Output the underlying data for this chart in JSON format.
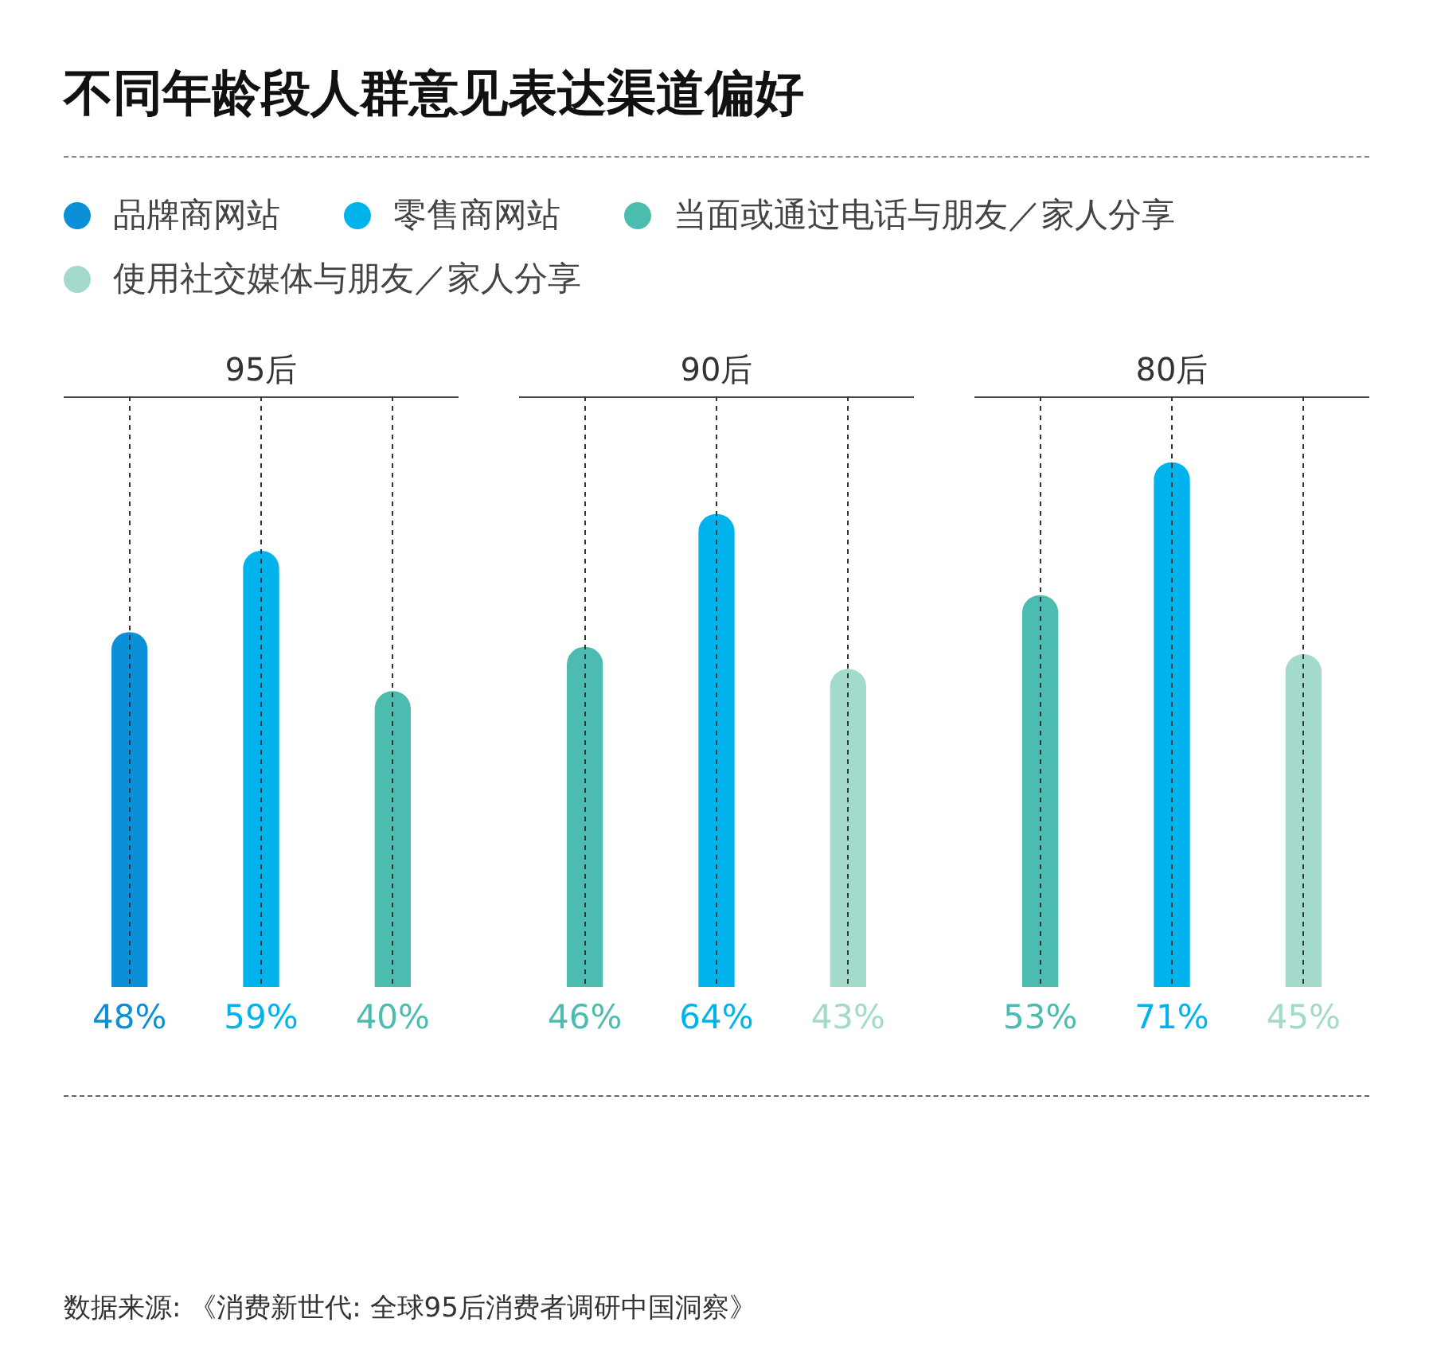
{
  "chart_data": [
    {
      "type": "other",
      "title": "不同年龄段人群意见表达渠道偏好",
      "categories": [
        "品牌商网站",
        "零售商网站",
        "当面或通过电话与朋友／家人分享",
        "使用社交媒体与朋友／家人分享"
      ],
      "colors": [
        "#0a8fd8",
        "#00b3ec",
        "#4dbcb0",
        "#a4dacb"
      ],
      "annotations": [
        "数据来源: 《消费新世代: 全球95后消费者调研中国洞察》"
      ]
    },
    {
      "type": "bar",
      "title": "95后",
      "categories": [
        null,
        null,
        null
      ],
      "grid": "x",
      "values": [
        48,
        59,
        40
      ],
      "colors": [
        "#0a8fd8",
        "#00b3ec",
        "#4dbcb0"
      ],
      "value_labels": [
        "48%",
        "59%",
        "40%"
      ]
    },
    {
      "type": "bar",
      "title": "90后",
      "categories": [
        null,
        null,
        null
      ],
      "grid": "x",
      "values": [
        46,
        64,
        43
      ],
      "colors": [
        "#4dbcb0",
        "#00b3ec",
        "#a4dacb"
      ],
      "value_labels": [
        "46%",
        "64%",
        "43%"
      ]
    },
    {
      "type": "bar",
      "title": "80后",
      "categories": [
        null,
        null,
        null
      ],
      "grid": "x",
      "values": [
        53,
        71,
        45
      ],
      "colors": [
        "#4dbcb0",
        "#00b3ec",
        "#a4dacb"
      ],
      "value_labels": [
        "53%",
        "71%",
        "45%"
      ]
    }
  ]
}
